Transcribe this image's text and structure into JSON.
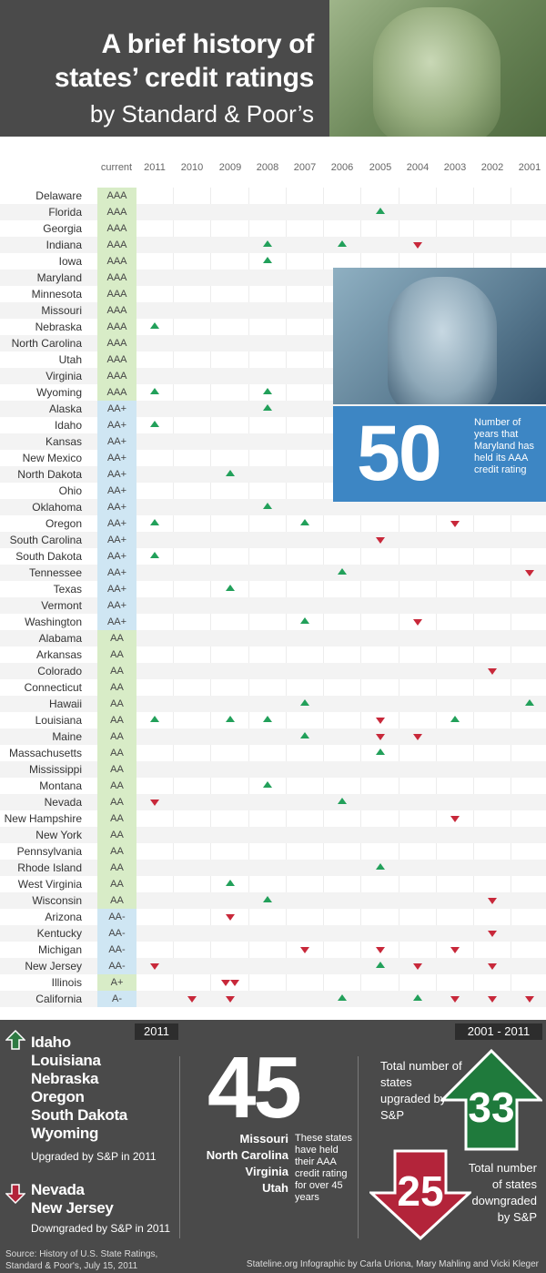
{
  "header": {
    "title_line1": "A brief history of",
    "title_line2": "states’ credit ratings",
    "subtitle": "by Standard & Poor’s"
  },
  "columns": [
    "current",
    "2011",
    "2010",
    "2009",
    "2008",
    "2007",
    "2006",
    "2005",
    "2004",
    "2003",
    "2002",
    "2001"
  ],
  "states": [
    {
      "name": "Delaware",
      "rating": "AAA",
      "marks": {}
    },
    {
      "name": "Florida",
      "rating": "AAA",
      "marks": {
        "2005": "up"
      }
    },
    {
      "name": "Georgia",
      "rating": "AAA",
      "marks": {}
    },
    {
      "name": "Indiana",
      "rating": "AAA",
      "marks": {
        "2008": "up",
        "2006": "up",
        "2004": "down"
      }
    },
    {
      "name": "Iowa",
      "rating": "AAA",
      "marks": {
        "2008": "up"
      }
    },
    {
      "name": "Maryland",
      "rating": "AAA",
      "marks": {}
    },
    {
      "name": "Minnesota",
      "rating": "AAA",
      "marks": {}
    },
    {
      "name": "Missouri",
      "rating": "AAA",
      "marks": {}
    },
    {
      "name": "Nebraska",
      "rating": "AAA",
      "marks": {
        "2011": "up"
      }
    },
    {
      "name": "North Carolina",
      "rating": "AAA",
      "marks": {}
    },
    {
      "name": "Utah",
      "rating": "AAA",
      "marks": {}
    },
    {
      "name": "Virginia",
      "rating": "AAA",
      "marks": {}
    },
    {
      "name": "Wyoming",
      "rating": "AAA",
      "marks": {
        "2011": "up",
        "2008": "up"
      }
    },
    {
      "name": "Alaska",
      "rating": "AA+",
      "marks": {
        "2008": "up"
      }
    },
    {
      "name": "Idaho",
      "rating": "AA+",
      "marks": {
        "2011": "up"
      }
    },
    {
      "name": "Kansas",
      "rating": "AA+",
      "marks": {}
    },
    {
      "name": "New Mexico",
      "rating": "AA+",
      "marks": {}
    },
    {
      "name": "North Dakota",
      "rating": "AA+",
      "marks": {
        "2009": "up"
      }
    },
    {
      "name": "Ohio",
      "rating": "AA+",
      "marks": {}
    },
    {
      "name": "Oklahoma",
      "rating": "AA+",
      "marks": {
        "2008": "up"
      }
    },
    {
      "name": "Oregon",
      "rating": "AA+",
      "marks": {
        "2011": "up",
        "2007": "up",
        "2003": "down"
      }
    },
    {
      "name": "South Carolina",
      "rating": "AA+",
      "marks": {
        "2005": "down"
      }
    },
    {
      "name": "South Dakota",
      "rating": "AA+",
      "marks": {
        "2011": "up"
      }
    },
    {
      "name": "Tennessee",
      "rating": "AA+",
      "marks": {
        "2006": "up",
        "2001": "down"
      }
    },
    {
      "name": "Texas",
      "rating": "AA+",
      "marks": {
        "2009": "up"
      }
    },
    {
      "name": "Vermont",
      "rating": "AA+",
      "marks": {}
    },
    {
      "name": "Washington",
      "rating": "AA+",
      "marks": {
        "2007": "up",
        "2004": "down"
      }
    },
    {
      "name": "Alabama",
      "rating": "AA",
      "marks": {}
    },
    {
      "name": "Arkansas",
      "rating": "AA",
      "marks": {}
    },
    {
      "name": "Colorado",
      "rating": "AA",
      "marks": {
        "2002": "down"
      }
    },
    {
      "name": "Connecticut",
      "rating": "AA",
      "marks": {}
    },
    {
      "name": "Hawaii",
      "rating": "AA",
      "marks": {
        "2007": "up",
        "2001": "up"
      }
    },
    {
      "name": "Louisiana",
      "rating": "AA",
      "marks": {
        "2011": "up",
        "2009": "up",
        "2008": "up",
        "2005": "down",
        "2003": "up"
      }
    },
    {
      "name": "Maine",
      "rating": "AA",
      "marks": {
        "2007": "up",
        "2005": "down",
        "2004": "down"
      }
    },
    {
      "name": "Massachusetts",
      "rating": "AA",
      "marks": {
        "2005": "up"
      }
    },
    {
      "name": "Mississippi",
      "rating": "AA",
      "marks": {}
    },
    {
      "name": "Montana",
      "rating": "AA",
      "marks": {
        "2008": "up"
      }
    },
    {
      "name": "Nevada",
      "rating": "AA",
      "marks": {
        "2011": "down",
        "2006": "up"
      }
    },
    {
      "name": "New Hampshire",
      "rating": "AA",
      "marks": {
        "2003": "down"
      }
    },
    {
      "name": "New York",
      "rating": "AA",
      "marks": {}
    },
    {
      "name": "Pennsylvania",
      "rating": "AA",
      "marks": {}
    },
    {
      "name": "Rhode Island",
      "rating": "AA",
      "marks": {
        "2005": "up"
      }
    },
    {
      "name": "West Virginia",
      "rating": "AA",
      "marks": {
        "2009": "up"
      }
    },
    {
      "name": "Wisconsin",
      "rating": "AA",
      "marks": {
        "2008": "up",
        "2002": "down"
      }
    },
    {
      "name": "Arizona",
      "rating": "AA-",
      "marks": {
        "2009": "down"
      }
    },
    {
      "name": "Kentucky",
      "rating": "AA-",
      "marks": {
        "2002": "down"
      }
    },
    {
      "name": "Michigan",
      "rating": "AA-",
      "marks": {
        "2007": "down",
        "2005": "down",
        "2003": "down"
      }
    },
    {
      "name": "New Jersey",
      "rating": "AA-",
      "marks": {
        "2011": "down",
        "2005": "up",
        "2004": "down",
        "2002": "down"
      }
    },
    {
      "name": "Illinois",
      "rating": "A+",
      "marks": {
        "2009": "down2"
      }
    },
    {
      "name": "California",
      "rating": "A-",
      "marks": {
        "2010": "down",
        "2009": "down",
        "2006": "up",
        "2004": "up",
        "2003": "down",
        "2002": "down",
        "2001": "down"
      }
    }
  ],
  "maryland_callout": {
    "number": "50",
    "text": "Number of years that Maryland has held its AAA credit rating"
  },
  "summary": {
    "tag_2011": "2011",
    "tag_range": "2001 - 2011",
    "upgraded_states": [
      "Idaho",
      "Louisiana",
      "Nebraska",
      "Oregon",
      "South Dakota",
      "Wyoming"
    ],
    "upgraded_caption": "Upgraded by S&P in 2011",
    "downgraded_states": [
      "Nevada",
      "New Jersey"
    ],
    "downgraded_caption": "Downgraded by S&P in 2011",
    "held_number": "45",
    "held_states": [
      "Missouri",
      "North Carolina",
      "Virginia",
      "Utah"
    ],
    "held_caption": "These states have held their AAA credit rating for over 45 years",
    "total_up_label": "Total number of states upgraded by S&P",
    "total_up": "33",
    "total_down_label": "Total number of states downgraded by S&P",
    "total_down": "25"
  },
  "footer": {
    "source_line1": "Source: History of U.S. State Ratings,",
    "source_line2": "Standard & Poor's, July 15, 2011",
    "credit": "Stateline.org Infographic by Carla Uriona, Mary Mahling and Vicki Kleger"
  },
  "colors": {
    "up": "#22a05a",
    "down": "#c8283a",
    "dark": "#4a4a4a",
    "blue": "#3d86c4"
  }
}
